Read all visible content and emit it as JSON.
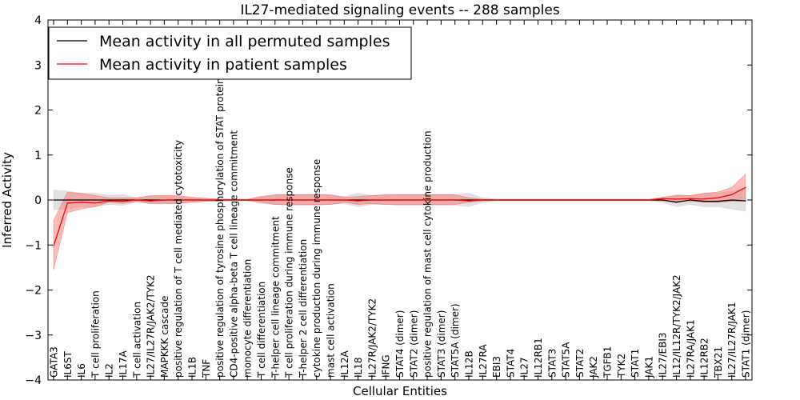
{
  "chart_data": {
    "type": "line",
    "title": "IL27-mediated signaling events -- 288 samples",
    "xlabel": "Cellular Entities",
    "ylabel": "Inferred Activity",
    "ylim": [
      -4,
      4
    ],
    "yticks": [
      -4,
      -3,
      -2,
      -1,
      0,
      1,
      2,
      3,
      4
    ],
    "ytick_labels": [
      "−4",
      "−3",
      "−2",
      "−1",
      "0",
      "1",
      "2",
      "3",
      "4"
    ],
    "legend_position": "top-left",
    "colors": {
      "permuted": "#000000",
      "permuted_band": "#b0b0b0",
      "patient": "#ff0000",
      "patient_band": "#ff6666"
    },
    "categories": [
      "GATA3",
      "IL6ST",
      "IL6",
      "T cell proliferation",
      "IL2",
      "IL17A",
      "T cell activation",
      "IL27/IL27R/JAK2/TYK2",
      "MAPKKK cascade",
      "positive regulation of T cell mediated cytotoxicity",
      "IL1B",
      "TNF",
      "positive regulation of tyrosine phosphorylation of STAT protein",
      "CD4-positive alpha-beta T cell lineage commitment",
      "monocyte differentiation",
      "T cell differentiation",
      "T-helper cell lineage commitment",
      "T cell proliferation during immune response",
      "T-helper 2 cell differentiation",
      "cytokine production during immune response",
      "mast cell activation",
      "IL12A",
      "IL18",
      "IL27R/JAK2/TYK2",
      "IFNG",
      "STAT4 (dimer)",
      "STAT2 (dimer)",
      "positive regulation of mast cell cytokine production",
      "STAT3 (dimer)",
      "STAT5A (dimer)",
      "IL12B",
      "IL27RA",
      "EBI3",
      "STAT4",
      "IL27",
      "IL12RB1",
      "STAT3",
      "STAT5A",
      "STAT2",
      "JAK2",
      "TGFB1",
      "TYK2",
      "STAT1",
      "JAK1",
      "IL27/EBI3",
      "IL12/IL12R/TYK2/JAK2",
      "IL27RA/JAK1",
      "IL12RB2",
      "TBX21",
      "IL27/IL27R/JAK1",
      "STAT1 (dimer)"
    ],
    "series": [
      {
        "name": "Mean activity in all permuted samples",
        "values": [
          0,
          0,
          0,
          0,
          0,
          0,
          0,
          0,
          0,
          0,
          0,
          0,
          0,
          0,
          0,
          0,
          0,
          0,
          0,
          0,
          0,
          0,
          0,
          0,
          0,
          0,
          0,
          0,
          0,
          0,
          0,
          0,
          0,
          0,
          0,
          0,
          0,
          0,
          0,
          0,
          0,
          0,
          0,
          0,
          0,
          -0.05,
          0,
          -0.03,
          -0.03,
          0,
          -0.02
        ],
        "lower": [
          -0.22,
          -0.2,
          -0.15,
          -0.15,
          -0.1,
          -0.12,
          -0.05,
          -0.08,
          -0.08,
          -0.08,
          -0.05,
          -0.03,
          -0.03,
          -0.02,
          -0.02,
          -0.08,
          -0.1,
          -0.12,
          -0.12,
          -0.12,
          -0.1,
          -0.08,
          -0.15,
          -0.1,
          -0.1,
          -0.12,
          -0.12,
          -0.12,
          -0.12,
          -0.12,
          -0.15,
          -0.05,
          -0.02,
          -0.02,
          -0.02,
          -0.02,
          -0.02,
          -0.02,
          -0.02,
          -0.02,
          -0.02,
          -0.02,
          -0.02,
          -0.02,
          -0.05,
          -0.15,
          -0.1,
          -0.15,
          -0.15,
          -0.2,
          -0.25
        ],
        "upper": [
          0.22,
          0.2,
          0.15,
          0.15,
          0.1,
          0.12,
          0.05,
          0.08,
          0.08,
          0.08,
          0.05,
          0.03,
          0.03,
          0.02,
          0.02,
          0.08,
          0.1,
          0.12,
          0.12,
          0.12,
          0.1,
          0.08,
          0.15,
          0.1,
          0.1,
          0.12,
          0.12,
          0.12,
          0.12,
          0.12,
          0.15,
          0.05,
          0.02,
          0.02,
          0.02,
          0.02,
          0.02,
          0.02,
          0.02,
          0.02,
          0.02,
          0.02,
          0.02,
          0.02,
          0.05,
          0.12,
          0.1,
          0.15,
          0.15,
          0.2,
          0.25
        ]
      },
      {
        "name": "Mean activity in patient samples",
        "values": [
          -1.02,
          -0.07,
          -0.05,
          -0.07,
          -0.02,
          -0.03,
          0,
          -0.02,
          0,
          0,
          0,
          0,
          0,
          0,
          0,
          0,
          0,
          0,
          0,
          0,
          0,
          0,
          -0.02,
          0,
          0,
          0,
          0,
          0,
          0,
          0,
          -0.02,
          0,
          0,
          0,
          0,
          0,
          0,
          0,
          0,
          0,
          0,
          0,
          0,
          0,
          0.03,
          0.02,
          0.03,
          0.02,
          0.05,
          0.12,
          0.28
        ],
        "lower": [
          -1.55,
          -0.28,
          -0.2,
          -0.15,
          -0.05,
          -0.08,
          -0.03,
          -0.08,
          -0.08,
          -0.08,
          -0.05,
          -0.03,
          -0.02,
          -0.01,
          -0.01,
          -0.05,
          -0.1,
          -0.1,
          -0.1,
          -0.1,
          -0.1,
          -0.05,
          -0.1,
          -0.08,
          -0.1,
          -0.1,
          -0.1,
          -0.1,
          -0.1,
          -0.1,
          -0.05,
          -0.02,
          -0.01,
          -0.01,
          -0.01,
          -0.01,
          -0.01,
          -0.01,
          -0.01,
          -0.01,
          -0.01,
          -0.01,
          -0.01,
          -0.01,
          -0.02,
          -0.03,
          -0.02,
          -0.05,
          -0.05,
          -0.03,
          -0.02
        ],
        "upper": [
          -0.45,
          0.17,
          0.15,
          0.1,
          0.05,
          0.05,
          0.05,
          0.1,
          0.1,
          0.1,
          0.06,
          0.04,
          0.02,
          0.01,
          0.01,
          0.08,
          0.12,
          0.12,
          0.12,
          0.12,
          0.12,
          0.06,
          0.08,
          0.1,
          0.12,
          0.12,
          0.12,
          0.12,
          0.12,
          0.12,
          0.05,
          0.02,
          0.01,
          0.01,
          0.01,
          0.01,
          0.01,
          0.01,
          0.01,
          0.01,
          0.01,
          0.01,
          0.01,
          0.01,
          0.06,
          0.1,
          0.1,
          0.15,
          0.18,
          0.28,
          0.58
        ]
      }
    ]
  }
}
